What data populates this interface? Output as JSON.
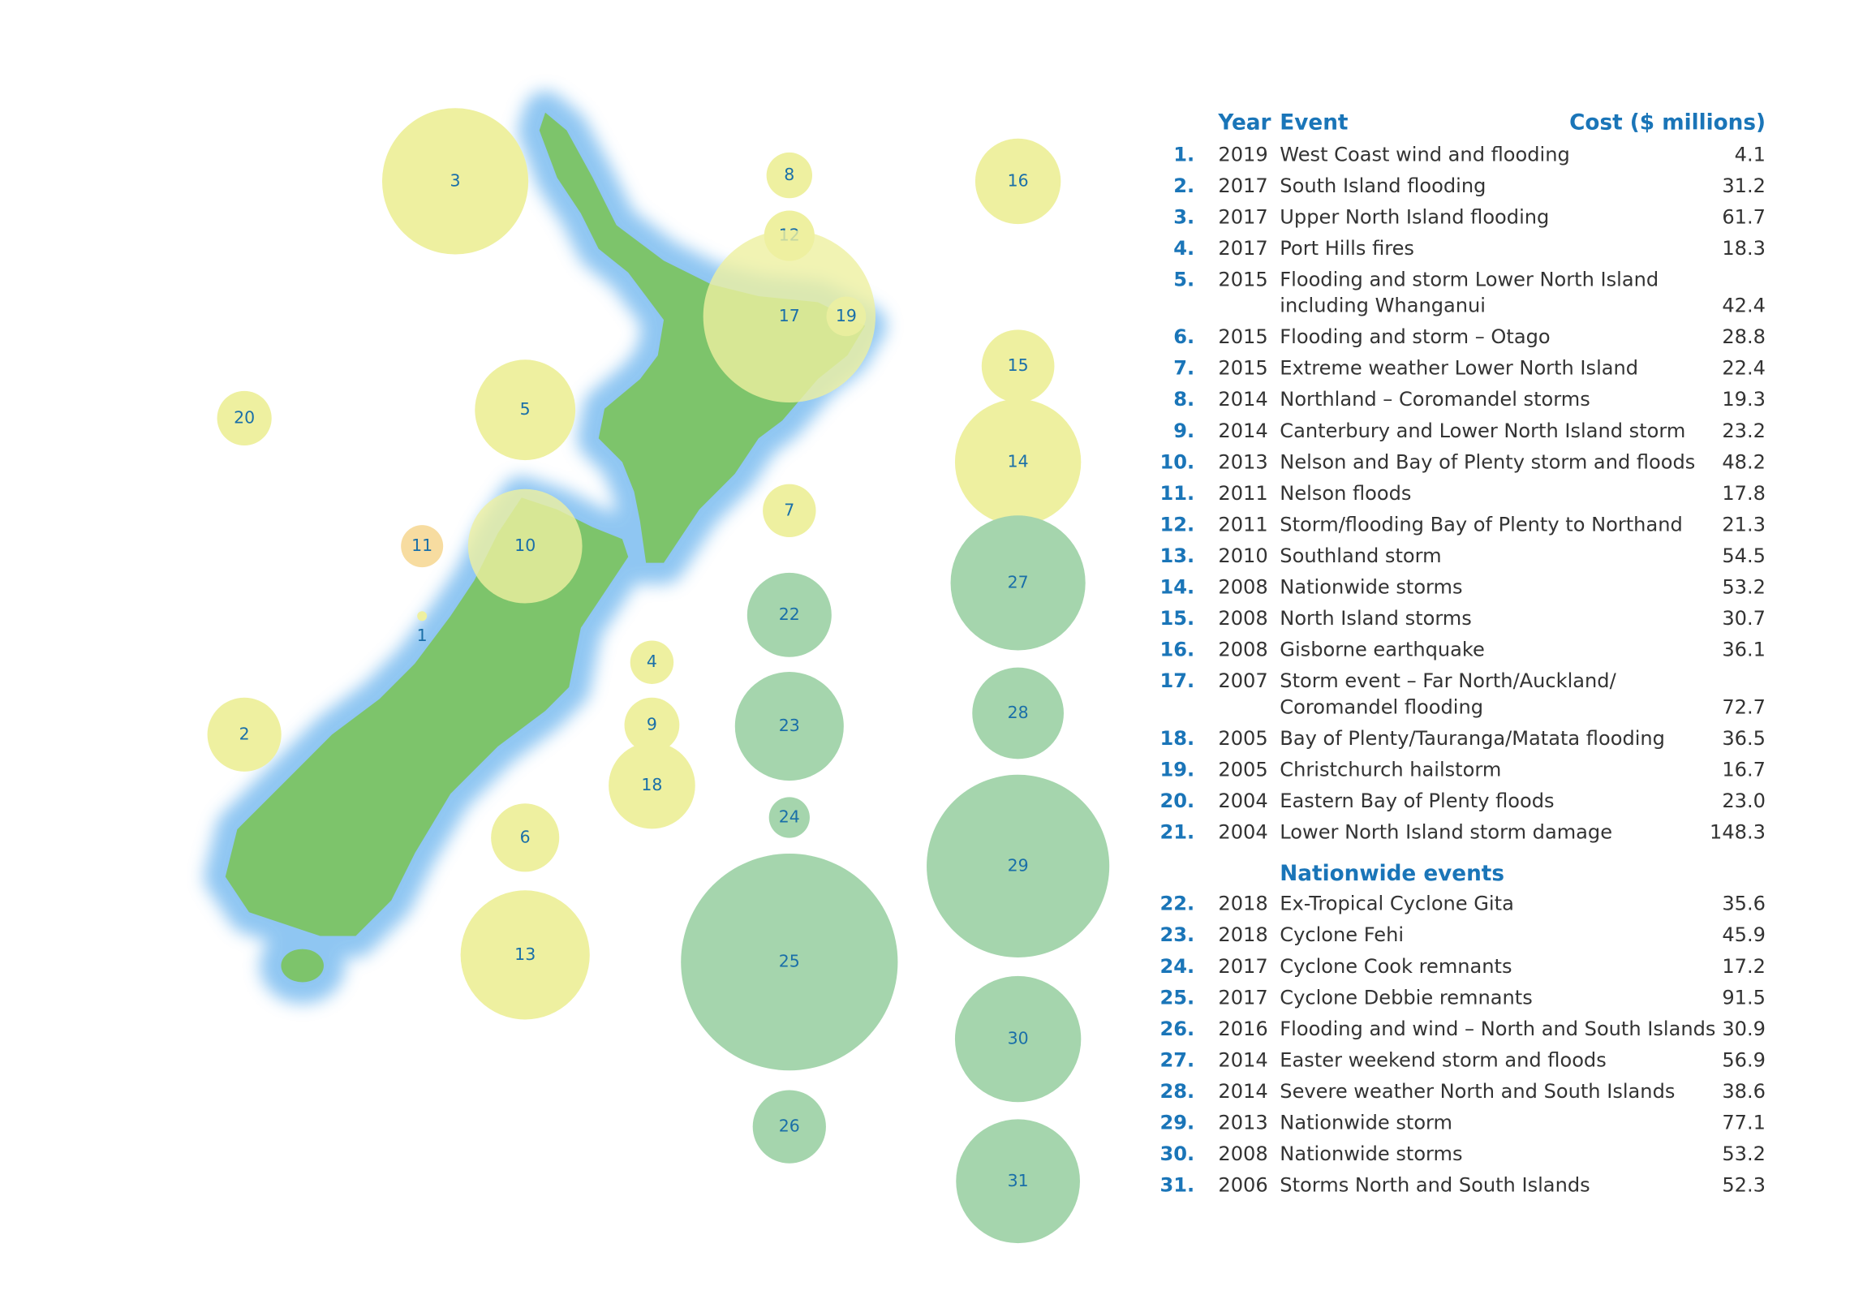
{
  "header": {
    "year": "Year",
    "event": "Event",
    "cost": "Cost ($ millions)"
  },
  "section": "Nationwide events",
  "rows": [
    {
      "no": "1.",
      "id": 1,
      "year": "2019",
      "event": [
        "West Coast wind and flooding"
      ],
      "cost": 4.1
    },
    {
      "no": "2.",
      "id": 2,
      "year": "2017",
      "event": [
        "South Island flooding"
      ],
      "cost": 31.2
    },
    {
      "no": "3.",
      "id": 3,
      "year": "2017",
      "event": [
        "Upper North Island flooding"
      ],
      "cost": 61.7
    },
    {
      "no": "4.",
      "id": 4,
      "year": "2017",
      "event": [
        "Port Hills fires"
      ],
      "cost": 18.3
    },
    {
      "no": "5.",
      "id": 5,
      "year": "2015",
      "event": [
        "Flooding and storm Lower North Island",
        "including Whanganui"
      ],
      "cost": 42.4
    },
    {
      "no": "6.",
      "id": 6,
      "year": "2015",
      "event": [
        "Flooding and storm – Otago"
      ],
      "cost": 28.8
    },
    {
      "no": "7.",
      "id": 7,
      "year": "2015",
      "event": [
        "Extreme weather Lower North Island"
      ],
      "cost": 22.4
    },
    {
      "no": "8.",
      "id": 8,
      "year": "2014",
      "event": [
        "Northland – Coromandel storms"
      ],
      "cost": 19.3
    },
    {
      "no": "9.",
      "id": 9,
      "year": "2014",
      "event": [
        "Canterbury and Lower North Island storm"
      ],
      "cost": 23.2
    },
    {
      "no": "10.",
      "id": 10,
      "year": "2013",
      "event": [
        "Nelson and Bay of Plenty storm and floods"
      ],
      "cost": 48.2
    },
    {
      "no": "11.",
      "id": 11,
      "year": "2011",
      "event": [
        "Nelson floods"
      ],
      "cost": 17.8
    },
    {
      "no": "12.",
      "id": 12,
      "year": "2011",
      "event": [
        "Storm/flooding Bay of Plenty to Northand"
      ],
      "cost": 21.3
    },
    {
      "no": "13.",
      "id": 13,
      "year": "2010",
      "event": [
        "Southland storm"
      ],
      "cost": 54.5
    },
    {
      "no": "14.",
      "id": 14,
      "year": "2008",
      "event": [
        "Nationwide storms"
      ],
      "cost": 53.2
    },
    {
      "no": "15.",
      "id": 15,
      "year": "2008",
      "event": [
        "North Island storms"
      ],
      "cost": 30.7
    },
    {
      "no": "16.",
      "id": 16,
      "year": "2008",
      "event": [
        "Gisborne earthquake"
      ],
      "cost": 36.1
    },
    {
      "no": "17.",
      "id": 17,
      "year": "2007",
      "event": [
        "Storm event – Far North/Auckland/",
        "Coromandel flooding"
      ],
      "cost": 72.7
    },
    {
      "no": "18.",
      "id": 18,
      "year": "2005",
      "event": [
        "Bay of Plenty/Tauranga/Matata flooding"
      ],
      "cost": 36.5
    },
    {
      "no": "19.",
      "id": 19,
      "year": "2005",
      "event": [
        "Christchurch hailstorm"
      ],
      "cost": 16.7
    },
    {
      "no": "20.",
      "id": 20,
      "year": "2004",
      "event": [
        "Eastern Bay of Plenty floods"
      ],
      "cost": 23,
      "cost_label": "23.0"
    },
    {
      "no": "21.",
      "id": 21,
      "year": "2004",
      "event": [
        "Lower North Island storm damage"
      ],
      "cost": 148.3
    },
    {
      "no": "22.",
      "id": 22,
      "year": "2018",
      "event": [
        "Ex-Tropical Cyclone Gita"
      ],
      "cost": 35.6
    },
    {
      "no": "23.",
      "id": 23,
      "year": "2018",
      "event": [
        "Cyclone Fehi"
      ],
      "cost": 45.9
    },
    {
      "no": "24.",
      "id": 24,
      "year": "2017",
      "event": [
        "Cyclone Cook remnants"
      ],
      "cost": 17.2
    },
    {
      "no": "25.",
      "id": 25,
      "year": "2017",
      "event": [
        "Cyclone Debbie remnants"
      ],
      "cost": 91.5
    },
    {
      "no": "26.",
      "id": 26,
      "year": "2016",
      "event": [
        "Flooding and wind – North and South Islands"
      ],
      "cost": 30.9
    },
    {
      "no": "27.",
      "id": 27,
      "year": "2014",
      "event": [
        "Easter weekend storm and floods"
      ],
      "cost": 56.9
    },
    {
      "no": "28.",
      "id": 28,
      "year": "2014",
      "event": [
        "Severe weather North and South Islands"
      ],
      "cost": 38.6
    },
    {
      "no": "29.",
      "id": 29,
      "year": "2013",
      "event": [
        "Nationwide storm"
      ],
      "cost": 77.1
    },
    {
      "no": "30.",
      "id": 30,
      "year": "2008",
      "event": [
        "Nationwide storms"
      ],
      "cost": 53.2
    },
    {
      "no": "31.",
      "id": 31,
      "year": "2006",
      "event": [
        "Storms North and South Islands"
      ],
      "cost": 52.3
    }
  ]
}
